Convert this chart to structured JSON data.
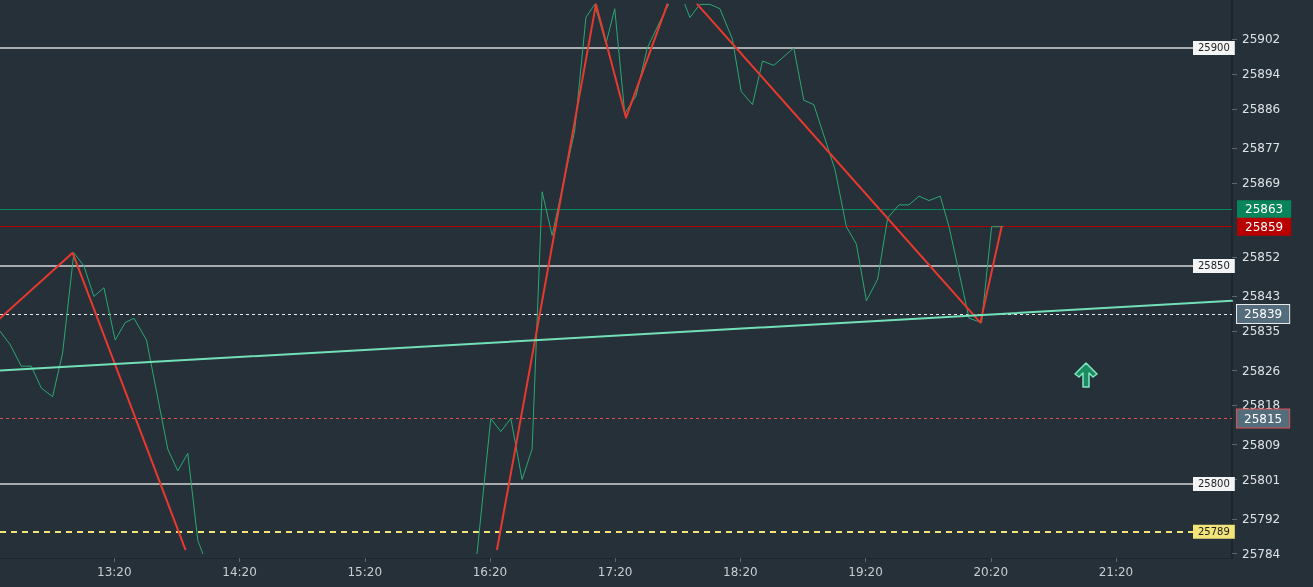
{
  "chart_data": {
    "type": "line",
    "xlim": [
      12.42,
      22.26
    ],
    "ylim": [
      25783,
      25911
    ],
    "xticks": [
      {
        "value": 13.3333,
        "label": "13:20"
      },
      {
        "value": 14.3333,
        "label": "14:20"
      },
      {
        "value": 15.3333,
        "label": "15:20"
      },
      {
        "value": 16.3333,
        "label": "16:20"
      },
      {
        "value": 17.3333,
        "label": "17:20"
      },
      {
        "value": 18.3333,
        "label": "18:20"
      },
      {
        "value": 19.3333,
        "label": "19:20"
      },
      {
        "value": 20.3333,
        "label": "20:20"
      },
      {
        "value": 21.3333,
        "label": "21:20"
      }
    ],
    "yticks": [
      25784,
      25792,
      25801,
      25809,
      25818,
      25826,
      25835,
      25843,
      25852,
      25869,
      25877,
      25886,
      25894,
      25902
    ],
    "grid": false,
    "marker": "none",
    "series": [
      {
        "color": "#2aa873",
        "x": [
          12.42,
          12.5,
          12.59,
          12.67,
          12.75,
          12.84,
          12.92,
          13.01,
          13.09,
          13.17,
          13.25,
          13.34,
          13.42,
          13.49,
          13.59,
          13.76,
          13.84,
          13.92,
          14.0,
          14.04,
          14.1,
          16.2,
          16.23,
          16.34,
          16.42,
          16.5,
          16.59,
          16.67,
          16.75,
          16.83,
          17.01,
          17.1,
          17.17,
          17.26,
          17.33,
          17.41,
          17.5,
          17.59,
          17.69,
          17.76,
          17.82,
          17.89,
          17.93,
          18.01,
          18.09,
          18.17,
          18.27,
          18.34,
          18.43,
          18.51,
          18.6,
          18.76,
          18.84,
          18.92,
          19.09,
          19.18,
          19.26,
          19.34,
          19.43,
          19.51,
          19.6,
          19.68,
          19.76,
          19.84,
          19.93,
          20.0,
          20.16,
          20.26,
          20.34,
          20.43
        ],
        "values": [
          25835,
          25832,
          25827,
          25827,
          25822,
          25820,
          25830,
          25853,
          25850,
          25843,
          25845,
          25833,
          25837,
          25838,
          25833,
          25808,
          25803,
          25807,
          25787,
          25784,
          null,
          null,
          25784,
          25815,
          25812,
          25815,
          25801,
          25808,
          25867,
          25857,
          25881,
          25907,
          25910,
          25901,
          25909,
          25885,
          25889,
          25900,
          25906,
          25910,
          null,
          25910,
          25907,
          25910,
          25910,
          25909,
          25902,
          25890,
          25887,
          25897,
          25896,
          25900,
          25888,
          25887,
          25872,
          25859,
          25855,
          25842,
          25847,
          25861,
          25864,
          25864,
          25866,
          25865,
          25866,
          25859,
          25838,
          25837,
          25859,
          25859
        ]
      },
      {
        "color": "#e8392f",
        "x": [
          12.42,
          13.0,
          13.9,
          14.5,
          16.39,
          17.18,
          17.42,
          17.75,
          17.87,
          17.99,
          20.25,
          20.42
        ],
        "values": [
          25838,
          25853,
          25785,
          null,
          25785,
          25910,
          25884,
          25910,
          null,
          25910,
          25837,
          25859
        ]
      },
      {
        "color": "#72e0b6",
        "x": [
          12.42,
          22.26
        ],
        "values": [
          25826,
          25842
        ]
      }
    ],
    "ref_lines": [
      {
        "axis": "y",
        "value": 25900,
        "label": "25900",
        "color": "#a9acaf",
        "line_style": "solid"
      },
      {
        "axis": "y",
        "value": 25863,
        "label": "25863",
        "color": "#08845a",
        "line_style": "solid"
      },
      {
        "axis": "y",
        "value": 25859,
        "label": "25859",
        "color": "#b80000",
        "line_style": "solid"
      },
      {
        "axis": "y",
        "value": 25850,
        "label": "25850",
        "color": "#a9acaf",
        "line_style": "solid"
      },
      {
        "axis": "y",
        "value": 25839,
        "label": "25839",
        "color": "#e8e8e8",
        "line_style": "dotted"
      },
      {
        "axis": "y",
        "value": 25815,
        "label": "25815",
        "color": "#e05050",
        "line_style": "dotted"
      },
      {
        "axis": "y",
        "value": 25800,
        "label": "25800",
        "color": "#a9acaf",
        "line_style": "solid"
      },
      {
        "axis": "y",
        "value": 25789,
        "label": "25789",
        "color": "#f3e479",
        "line_style": "dashed"
      }
    ]
  }
}
